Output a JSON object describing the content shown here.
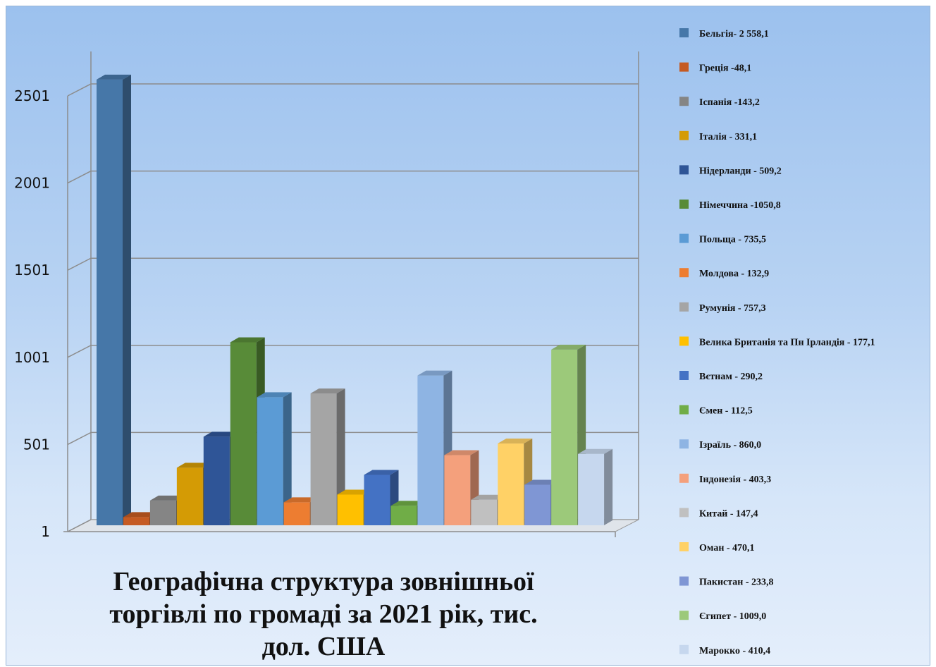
{
  "chart_data": {
    "type": "bar",
    "title": "Географічна структура  зовнішньої торгівлі по громаді за 2021 рік, тис. дол. США",
    "yticks": [
      "1",
      "501",
      "1001",
      "1501",
      "2001",
      "2501"
    ],
    "ylim": [
      1,
      2751
    ],
    "grid": true,
    "legend_position": "right",
    "series": [
      {
        "legend": "Бельгія- 2 558,1",
        "value": 2558.1,
        "color": "#4677a8"
      },
      {
        "legend": "Греція -48,1",
        "value": 48.1,
        "color": "#c55a22"
      },
      {
        "legend": "Іспанія -143,2",
        "value": 143.2,
        "color": "#858585"
      },
      {
        "legend": "Італія - 331,1",
        "value": 331.1,
        "color": "#d49b05"
      },
      {
        "legend": "Нідерланди - 509,2",
        "value": 509.2,
        "color": "#2f5597"
      },
      {
        "legend": "Німеччина -1050,8",
        "value": 1050.8,
        "color": "#588b38"
      },
      {
        "legend": "Польща - 735,5",
        "value": 735.5,
        "color": "#5b9bd5"
      },
      {
        "legend": "Молдова - 132,9",
        "value": 132.9,
        "color": "#ed7d31"
      },
      {
        "legend": "Румунія - 757,3",
        "value": 757.3,
        "color": "#a5a5a5"
      },
      {
        "legend": "Велика Британія та Пн Ірландія - 177,1",
        "value": 177.1,
        "color": "#ffc000"
      },
      {
        "legend": "Вєтнам - 290,2",
        "value": 290.2,
        "color": "#4472c4"
      },
      {
        "legend": "Ємен - 112,5",
        "value": 112.5,
        "color": "#70ad47"
      },
      {
        "legend": "Ізраїль - 860,0",
        "value": 860.0,
        "color": "#8eb4e3"
      },
      {
        "legend": "Індонезія - 403,3",
        "value": 403.3,
        "color": "#f4a07c"
      },
      {
        "legend": "Китай - 147,4",
        "value": 147.4,
        "color": "#c0c0c0"
      },
      {
        "legend": "Оман - 470,1",
        "value": 470.1,
        "color": "#ffd166"
      },
      {
        "legend": "Пакистан - 233,8",
        "value": 233.8,
        "color": "#7f96d4"
      },
      {
        "legend": "Єгипет - 1009,0",
        "value": 1009.0,
        "color": "#9cc97a"
      },
      {
        "legend": "Марокко - 410,4",
        "value": 410.4,
        "color": "#c6d7ee"
      }
    ]
  }
}
